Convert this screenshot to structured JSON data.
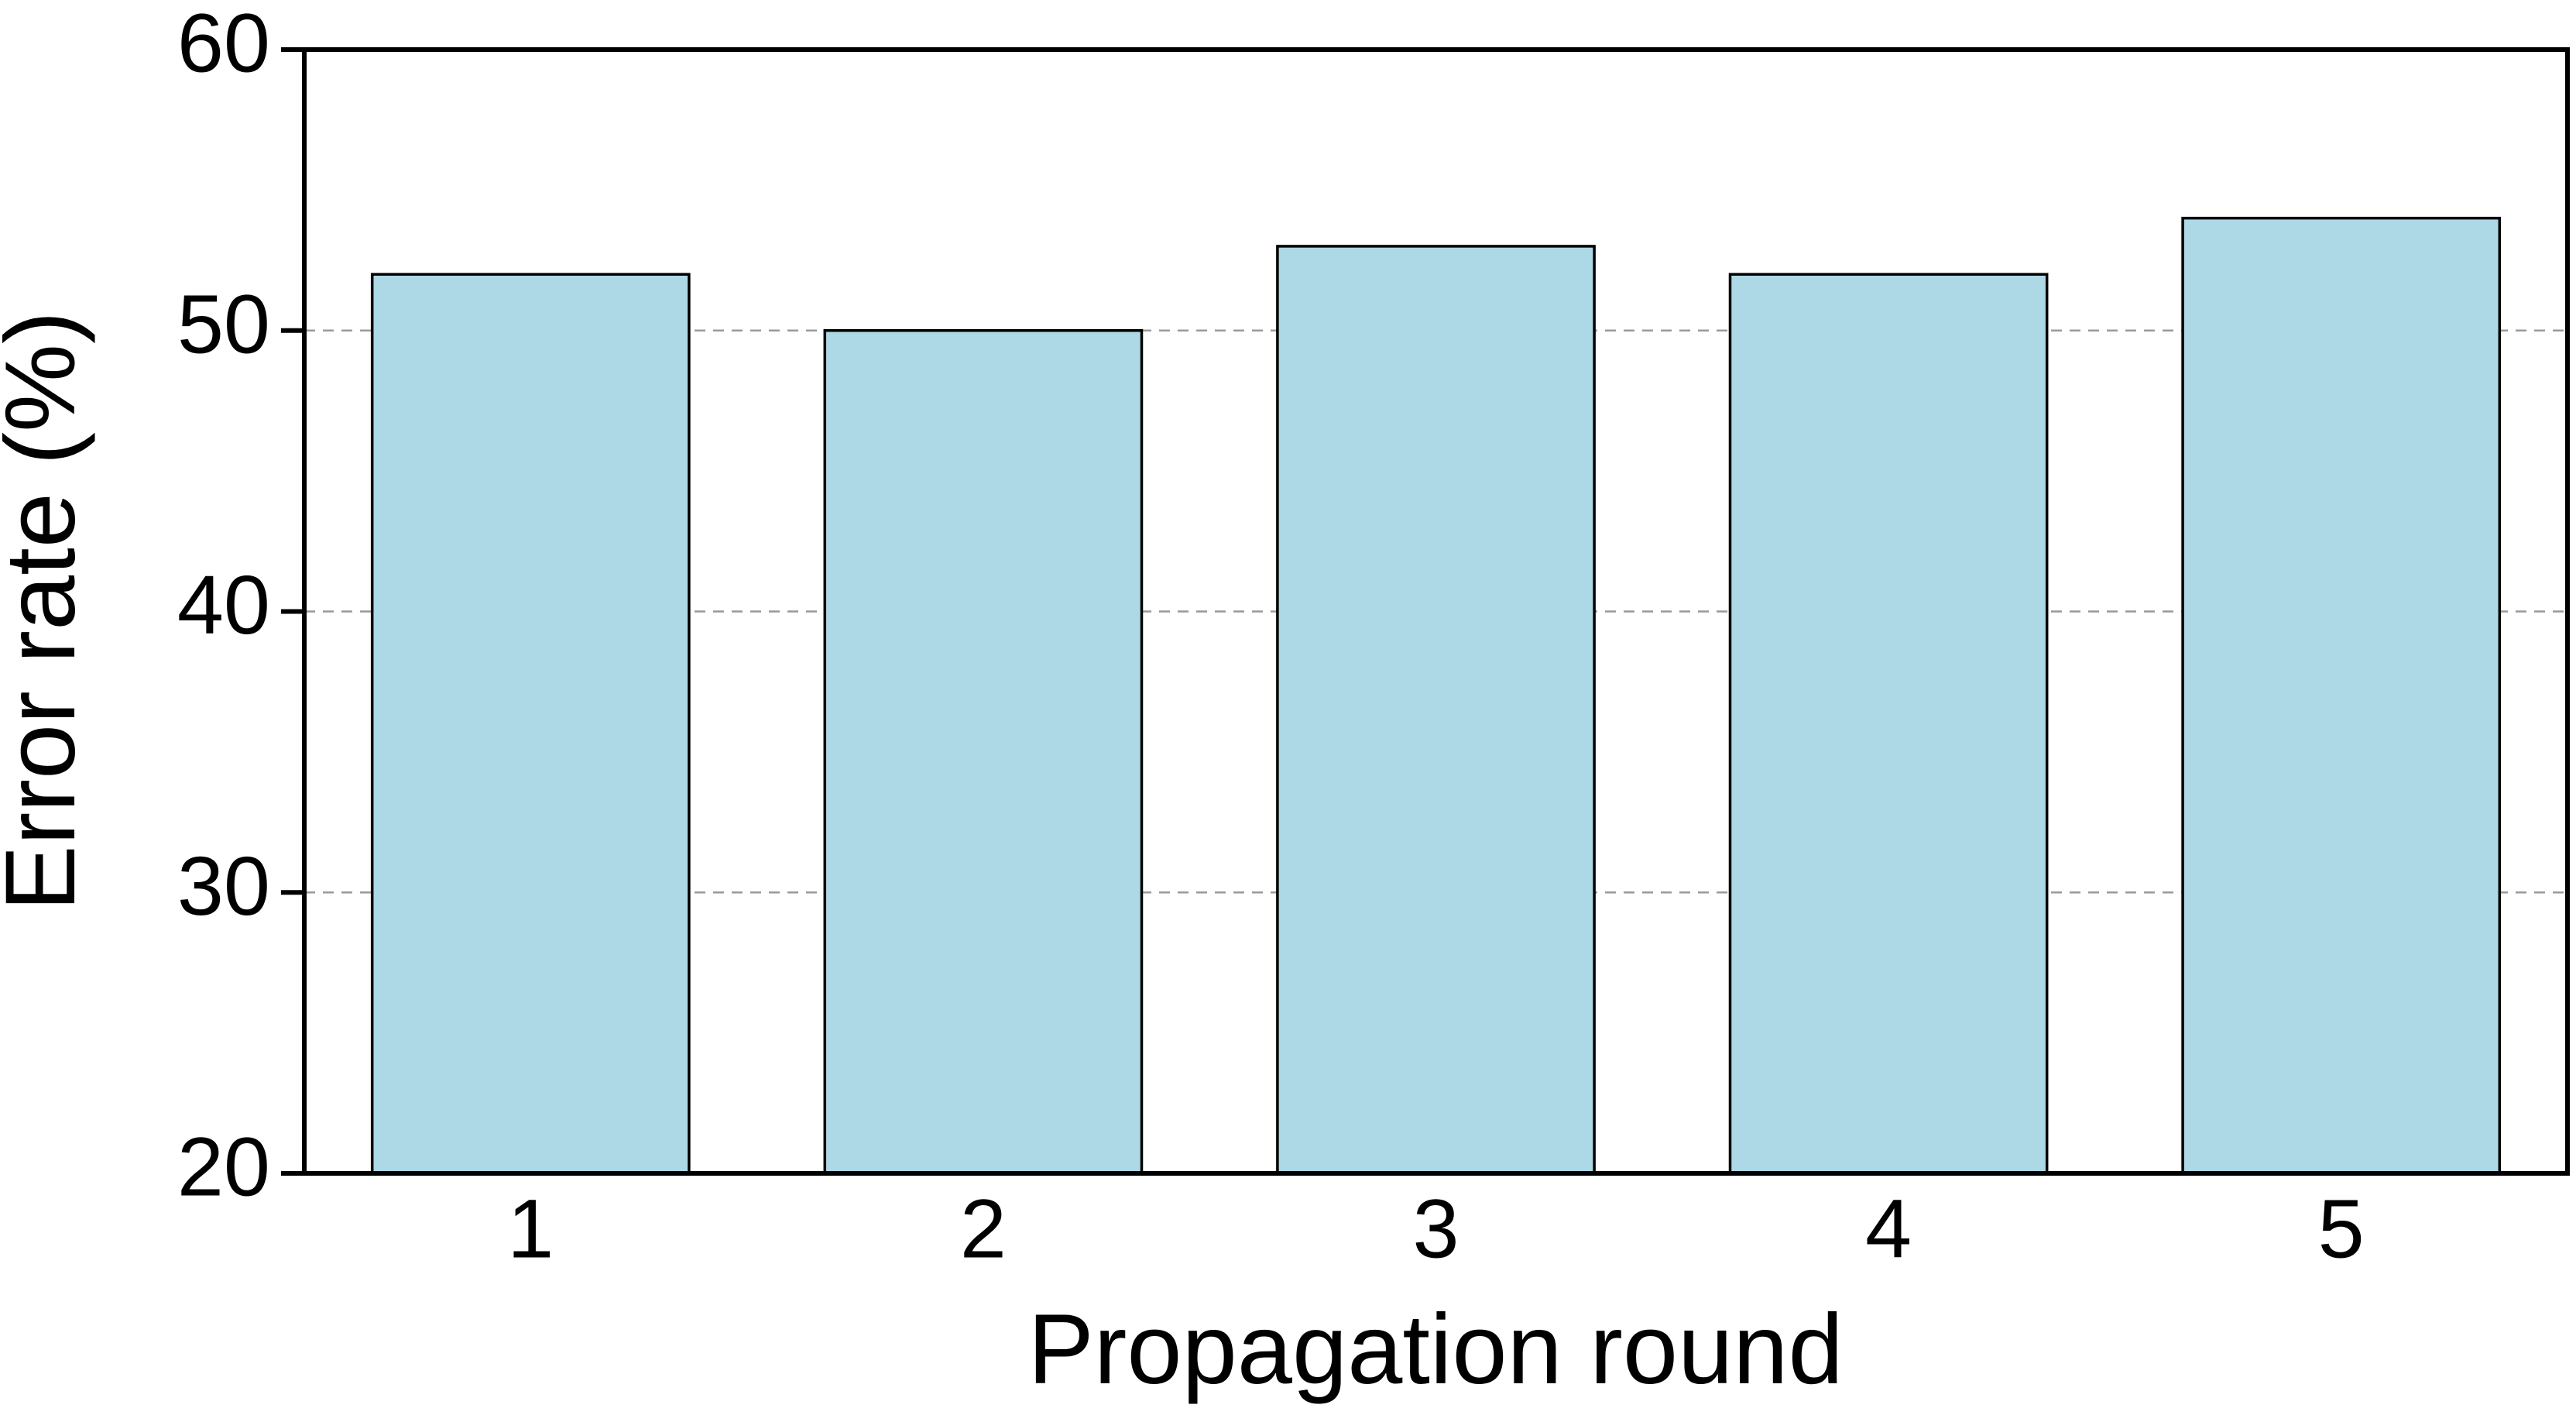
{
  "chart_data": {
    "type": "bar",
    "x_label": "Propagation round",
    "y_label": "Error rate (%)",
    "categories": [
      "1",
      "2",
      "3",
      "4",
      "5"
    ],
    "values": [
      52,
      50,
      53,
      52,
      54
    ],
    "color": "#add8e6",
    "ylim": [
      20,
      60
    ],
    "yticks": [
      20,
      30,
      40,
      50,
      60
    ],
    "grid": true
  }
}
